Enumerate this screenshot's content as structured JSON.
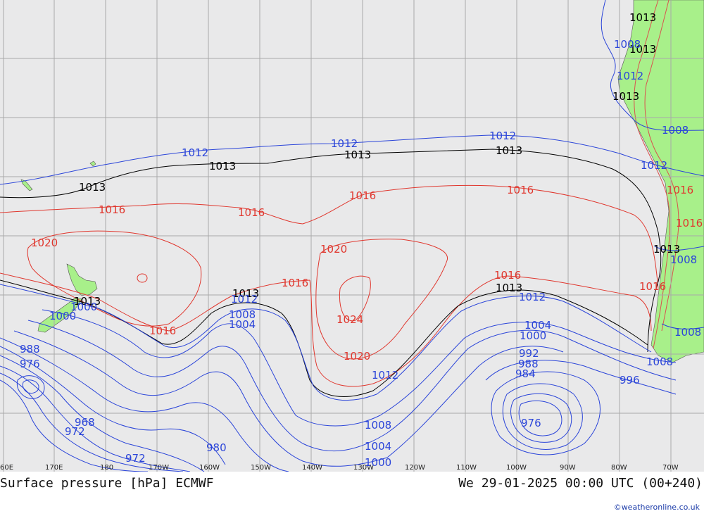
{
  "map": {
    "title": "Surface pressure [hPa] ECMWF",
    "valid_time": "We 29-01-2025 00:00 UTC (00+240)",
    "credit": "©weatheronline.co.uk",
    "longitude_labels": [
      "60E",
      "170E",
      "180",
      "170W",
      "160W",
      "150W",
      "140W",
      "130W",
      "120W",
      "110W",
      "100W",
      "90W",
      "80W",
      "70W"
    ],
    "colors": {
      "background": "#e9e9ea",
      "land": "#a8f08a",
      "grid": "#a9a9a9",
      "isobar_low": "#2b45d9",
      "isobar_high": "#e0372e",
      "isobar_ref": "#000000"
    },
    "isobar_labels": {
      "l_1013_a": "1013",
      "l_1013_b": "1013",
      "l_1013_c": "1013",
      "l_1013_d": "1013",
      "l_1013_e": "1013",
      "l_1013_f": "1013",
      "l_1013_g": "1013",
      "l_1013_h": "1013",
      "l_1013_i": "1013",
      "l_1013_j": "1013",
      "l_1013_k": "1013",
      "l_1012_a": "1012",
      "l_1012_b": "1012",
      "l_1012_c": "1012",
      "l_1012_d": "1012",
      "l_1012_e": "1012",
      "l_1012_f": "1012",
      "l_1012_g": "1012",
      "l_1012_h": "1012",
      "l_1016_a": "1016",
      "l_1016_b": "1016",
      "l_1016_c": "1016",
      "l_1016_d": "1016",
      "l_1016_e": "1016",
      "l_1016_f": "1016",
      "l_1016_g": "1016",
      "l_1016_h": "1016",
      "l_1016_i": "1016",
      "l_1016_j": "1016",
      "l_1020_a": "1020",
      "l_1020_b": "1020",
      "l_1020_c": "1020",
      "l_1024": "1024",
      "l_1008_a": "1008",
      "l_1008_b": "1008",
      "l_1008_c": "1008",
      "l_1008_d": "1008",
      "l_1008_e": "1008",
      "l_1008_f": "1008",
      "l_1008_g": "1008",
      "l_1004_a": "1004",
      "l_1004_b": "1004",
      "l_1004_c": "1004",
      "l_1000_a": "1000",
      "l_1000_b": "1000",
      "l_1000_c": "1000",
      "l_1000_d": "1000",
      "l_996": "996",
      "l_992": "992",
      "l_988_a": "988",
      "l_988_b": "988",
      "l_984": "984",
      "l_980": "980",
      "l_976_a": "976",
      "l_976_b": "976",
      "l_972_a": "972",
      "l_972_b": "972",
      "l_968": "968"
    }
  }
}
